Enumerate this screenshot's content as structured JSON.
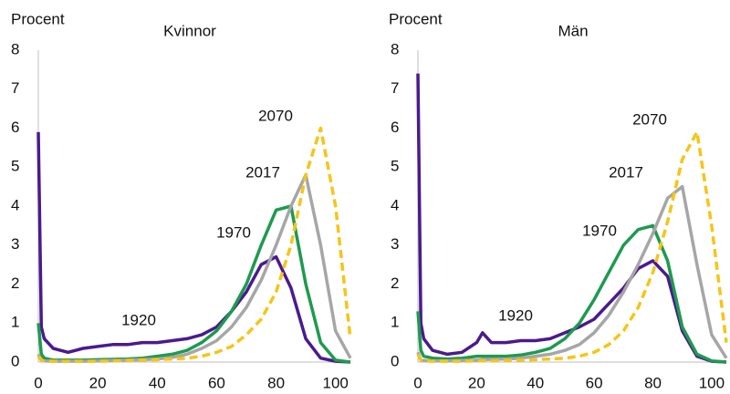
{
  "chart_data": [
    {
      "type": "line",
      "title": "Kvinnor",
      "ylabel": "Procent",
      "x": [
        0,
        1,
        2,
        5,
        10,
        15,
        20,
        25,
        30,
        35,
        40,
        45,
        50,
        55,
        60,
        65,
        70,
        75,
        80,
        85,
        90,
        95,
        100,
        105
      ],
      "xlim": [
        0,
        105
      ],
      "xticks": [
        0,
        20,
        40,
        60,
        80,
        100
      ],
      "ylim": [
        0,
        8
      ],
      "yticks": [
        0,
        1,
        2,
        3,
        4,
        5,
        6,
        7,
        8
      ],
      "series": [
        {
          "name": "1920",
          "color": "#4b1a8e",
          "dashed": false,
          "values": [
            5.9,
            0.9,
            0.6,
            0.35,
            0.25,
            0.35,
            0.4,
            0.45,
            0.45,
            0.5,
            0.5,
            0.55,
            0.6,
            0.7,
            0.9,
            1.3,
            1.8,
            2.5,
            2.7,
            1.9,
            0.6,
            0.1,
            0.02,
            0
          ]
        },
        {
          "name": "1970",
          "color": "#1e9a4f",
          "dashed": false,
          "values": [
            1.0,
            0.2,
            0.1,
            0.05,
            0.05,
            0.05,
            0.06,
            0.07,
            0.08,
            0.1,
            0.15,
            0.2,
            0.3,
            0.5,
            0.8,
            1.3,
            2.0,
            3.0,
            3.9,
            4.0,
            2.0,
            0.5,
            0.05,
            0
          ]
        },
        {
          "name": "2017",
          "color": "#a6a6a6",
          "dashed": false,
          "values": [
            0.2,
            0.05,
            0.03,
            0.02,
            0.02,
            0.02,
            0.03,
            0.04,
            0.05,
            0.06,
            0.08,
            0.12,
            0.2,
            0.35,
            0.55,
            0.9,
            1.4,
            2.1,
            3.0,
            4.0,
            4.8,
            3.0,
            0.8,
            0.1
          ]
        },
        {
          "name": "2070",
          "color": "#f5c518",
          "dashed": true,
          "values": [
            0.15,
            0.05,
            0.03,
            0.02,
            0.02,
            0.02,
            0.02,
            0.03,
            0.04,
            0.05,
            0.06,
            0.08,
            0.1,
            0.15,
            0.25,
            0.4,
            0.7,
            1.1,
            1.8,
            3.0,
            4.8,
            6.0,
            4.0,
            0.6
          ]
        }
      ]
    },
    {
      "type": "line",
      "title": "Män",
      "ylabel": "Procent",
      "x": [
        0,
        1,
        2,
        5,
        10,
        15,
        20,
        22,
        25,
        30,
        35,
        40,
        45,
        50,
        55,
        60,
        65,
        70,
        75,
        80,
        85,
        90,
        95,
        100,
        105
      ],
      "xlim": [
        0,
        105
      ],
      "xticks": [
        0,
        20,
        40,
        60,
        80,
        100
      ],
      "ylim": [
        0,
        8
      ],
      "yticks": [
        0,
        1,
        2,
        3,
        4,
        5,
        6,
        7,
        8
      ],
      "series": [
        {
          "name": "1920",
          "color": "#4b1a8e",
          "dashed": false,
          "values": [
            7.4,
            1.0,
            0.6,
            0.3,
            0.2,
            0.25,
            0.5,
            0.75,
            0.5,
            0.5,
            0.55,
            0.55,
            0.6,
            0.75,
            0.9,
            1.1,
            1.5,
            1.9,
            2.4,
            2.6,
            2.2,
            0.8,
            0.15,
            0.02,
            0
          ]
        },
        {
          "name": "1970",
          "color": "#1e9a4f",
          "dashed": false,
          "values": [
            1.3,
            0.3,
            0.15,
            0.1,
            0.08,
            0.1,
            0.15,
            0.15,
            0.15,
            0.15,
            0.18,
            0.25,
            0.35,
            0.6,
            1.0,
            1.6,
            2.3,
            3.0,
            3.4,
            3.5,
            2.6,
            0.9,
            0.2,
            0.03,
            0
          ]
        },
        {
          "name": "2017",
          "color": "#a6a6a6",
          "dashed": false,
          "values": [
            0.25,
            0.05,
            0.04,
            0.03,
            0.03,
            0.04,
            0.05,
            0.06,
            0.07,
            0.08,
            0.1,
            0.15,
            0.2,
            0.3,
            0.45,
            0.75,
            1.2,
            1.8,
            2.5,
            3.3,
            4.2,
            4.5,
            2.5,
            0.7,
            0.1
          ]
        },
        {
          "name": "2070",
          "color": "#f5c518",
          "dashed": true,
          "values": [
            0.2,
            0.05,
            0.03,
            0.02,
            0.02,
            0.02,
            0.03,
            0.03,
            0.03,
            0.04,
            0.05,
            0.06,
            0.08,
            0.1,
            0.15,
            0.25,
            0.45,
            0.8,
            1.4,
            2.3,
            3.6,
            5.2,
            5.9,
            3.5,
            0.5
          ]
        }
      ]
    }
  ]
}
